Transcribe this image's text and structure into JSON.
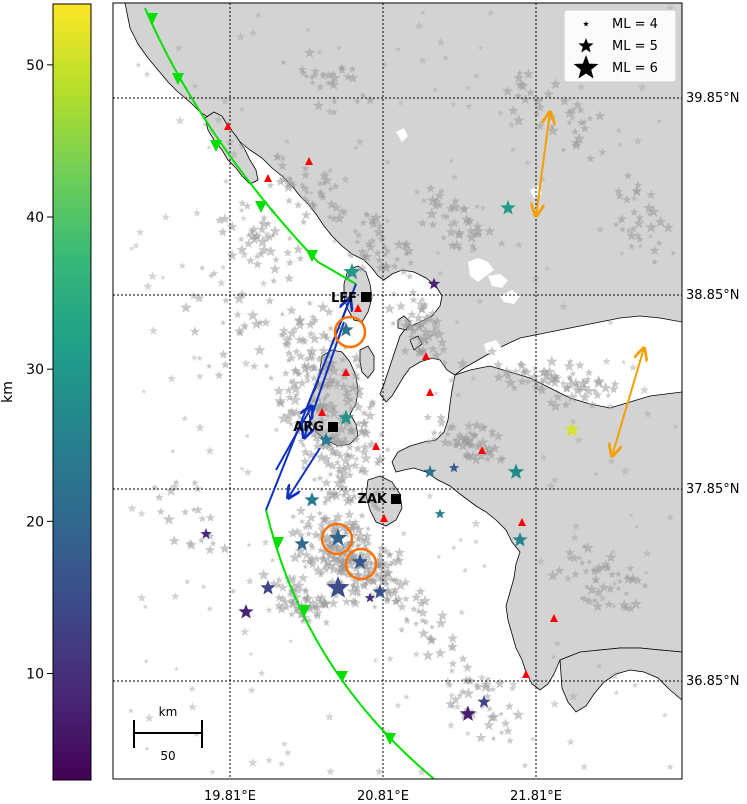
{
  "colorbar": {
    "label": "km",
    "ticks": [
      10,
      20,
      30,
      40,
      50
    ],
    "range": [
      3,
      54
    ]
  },
  "map": {
    "lon_ticks": [
      "19.81°E",
      "20.81°E",
      "21.81°E"
    ],
    "lat_ticks": [
      "39.85°N",
      "38.85°N",
      "37.85°N",
      "36.85°N"
    ]
  },
  "legend": {
    "entries": [
      {
        "label": "ML = 4",
        "magnitude": 4
      },
      {
        "label": "ML = 5",
        "magnitude": 5
      },
      {
        "label": "ML = 6",
        "magnitude": 6
      }
    ]
  },
  "stations": [
    {
      "code": "LEF"
    },
    {
      "code": "ARG"
    },
    {
      "code": "ZAK"
    }
  ],
  "scalebar": {
    "unit": "km",
    "value": "50"
  },
  "colors": {
    "land": "#d3d3d3",
    "trench": "#00e000",
    "fault": "#1030c0",
    "arrows": "#f5a000",
    "circles": "#ff7000",
    "triangles": "#ff0000",
    "background_events": "#9a9a9a"
  },
  "events": [
    {
      "depth": 30,
      "mag": 5.2
    },
    {
      "depth": 22,
      "mag": 5.0
    },
    {
      "depth": 19,
      "mag": 5.3
    },
    {
      "depth": 15,
      "mag": 5.8
    },
    {
      "depth": 17,
      "mag": 5.1
    },
    {
      "depth": 16,
      "mag": 5.0
    },
    {
      "depth": 14,
      "mag": 5.0
    },
    {
      "depth": 8,
      "mag": 5.0
    },
    {
      "depth": 7,
      "mag": 5.1
    },
    {
      "depth": 24,
      "mag": 5.0
    },
    {
      "depth": 29,
      "mag": 5.1
    },
    {
      "depth": 31,
      "mag": 5.0
    },
    {
      "depth": 51,
      "mag": 5.0
    },
    {
      "depth": 26,
      "mag": 5.0
    },
    {
      "depth": 8,
      "mag": 4.7
    },
    {
      "depth": 27,
      "mag": 5.1
    },
    {
      "depth": 24,
      "mag": 5.0
    },
    {
      "depth": 20,
      "mag": 5.0
    },
    {
      "depth": 23,
      "mag": 4.8
    },
    {
      "depth": 9,
      "mag": 4.6
    },
    {
      "depth": 18,
      "mag": 4.5
    },
    {
      "depth": 9,
      "mag": 4.5
    },
    {
      "depth": 25,
      "mag": 4.5
    },
    {
      "depth": 14,
      "mag": 4.8
    }
  ]
}
